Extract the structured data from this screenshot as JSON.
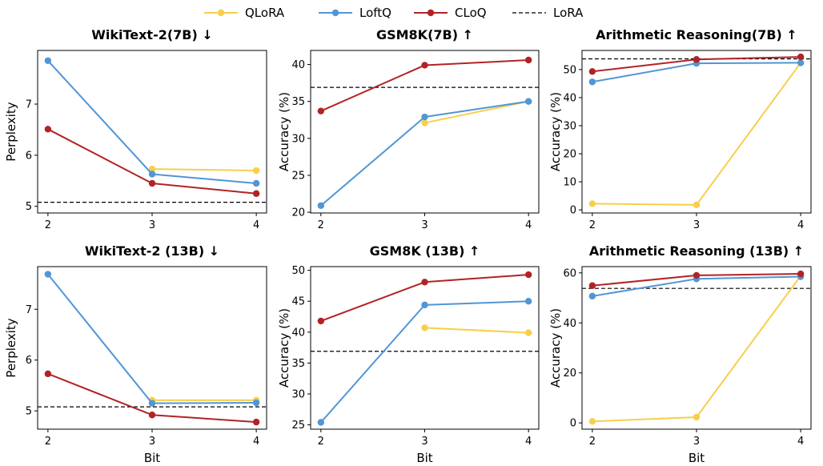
{
  "legend": {
    "items": [
      {
        "name": "QLoRA",
        "color": "#f7cf4a",
        "style": "line-marker"
      },
      {
        "name": "LoftQ",
        "color": "#5196d5",
        "style": "line-marker"
      },
      {
        "name": "CLoQ",
        "color": "#b22325",
        "style": "line-marker"
      },
      {
        "name": "LoRA",
        "color": "#000000",
        "style": "dashed"
      }
    ]
  },
  "chart_data": [
    {
      "type": "line",
      "title": "WikiText-2(7B) ↓",
      "xlabel": "",
      "ylabel": "Perplexity",
      "categories": [
        "2",
        "3",
        "4"
      ],
      "yticks": [
        5,
        6,
        7
      ],
      "ylim": [
        4.87,
        8.05
      ],
      "series": [
        {
          "name": "QLoRA",
          "values": [
            null,
            5.73,
            5.7
          ]
        },
        {
          "name": "LoftQ",
          "values": [
            7.85,
            5.63,
            5.45
          ]
        },
        {
          "name": "CLoQ",
          "values": [
            6.51,
            5.45,
            5.25
          ]
        }
      ],
      "lora": 5.08
    },
    {
      "type": "line",
      "title": "GSM8K(7B) ↑",
      "xlabel": "",
      "ylabel": "Accuracy (%)",
      "categories": [
        "2",
        "3",
        "4"
      ],
      "yticks": [
        20,
        25,
        30,
        35,
        40
      ],
      "ylim": [
        19.9,
        41.9
      ],
      "series": [
        {
          "name": "QLoRA",
          "values": [
            null,
            32.1,
            35.0
          ]
        },
        {
          "name": "LoftQ",
          "values": [
            20.9,
            32.9,
            35.0
          ]
        },
        {
          "name": "CLoQ",
          "values": [
            33.7,
            39.9,
            40.6
          ]
        }
      ],
      "lora": 36.9
    },
    {
      "type": "line",
      "title": "Arithmetic Reasoning(7B) ↑",
      "xlabel": "",
      "ylabel": "Accuracy (%)",
      "categories": [
        "2",
        "3",
        "4"
      ],
      "yticks": [
        0,
        10,
        20,
        30,
        40,
        50
      ],
      "ylim": [
        -1.1,
        56.8
      ],
      "series": [
        {
          "name": "QLoRA",
          "values": [
            2.2,
            1.8,
            52.4
          ]
        },
        {
          "name": "LoftQ",
          "values": [
            45.6,
            52.2,
            52.4
          ]
        },
        {
          "name": "CLoQ",
          "values": [
            49.3,
            53.6,
            54.5
          ]
        }
      ],
      "lora": 53.8
    },
    {
      "type": "line",
      "title": "WikiText-2 (13B) ↓",
      "xlabel": "Bit",
      "ylabel": "Perplexity",
      "categories": [
        "2",
        "3",
        "4"
      ],
      "yticks": [
        5,
        6,
        7
      ],
      "ylim": [
        4.64,
        7.84
      ],
      "series": [
        {
          "name": "QLoRA",
          "values": [
            null,
            5.21,
            5.21
          ]
        },
        {
          "name": "LoftQ",
          "values": [
            7.69,
            5.15,
            5.16
          ]
        },
        {
          "name": "CLoQ",
          "values": [
            5.73,
            4.92,
            4.78
          ]
        }
      ],
      "lora": 5.08
    },
    {
      "type": "line",
      "title": "GSM8K (13B) ↑",
      "xlabel": "Bit",
      "ylabel": "Accuracy (%)",
      "categories": [
        "2",
        "3",
        "4"
      ],
      "yticks": [
        25,
        30,
        35,
        40,
        45,
        50
      ],
      "ylim": [
        24.3,
        50.6
      ],
      "series": [
        {
          "name": "QLoRA",
          "values": [
            null,
            40.7,
            39.9
          ]
        },
        {
          "name": "LoftQ",
          "values": [
            25.4,
            44.4,
            45.0
          ]
        },
        {
          "name": "CLoQ",
          "values": [
            41.8,
            48.1,
            49.3
          ]
        }
      ],
      "lora": 36.9
    },
    {
      "type": "line",
      "title": "Arithmetic Reasoning (13B) ↑",
      "xlabel": "Bit",
      "ylabel": "Accuracy (%)",
      "categories": [
        "2",
        "3",
        "4"
      ],
      "yticks": [
        0,
        20,
        40,
        60
      ],
      "ylim": [
        -2.5,
        62.5
      ],
      "series": [
        {
          "name": "QLoRA",
          "values": [
            0.6,
            2.3,
            58.8
          ]
        },
        {
          "name": "LoftQ",
          "values": [
            50.7,
            57.6,
            58.5
          ]
        },
        {
          "name": "CLoQ",
          "values": [
            54.9,
            59.0,
            59.6
          ]
        }
      ],
      "lora": 53.8
    }
  ]
}
